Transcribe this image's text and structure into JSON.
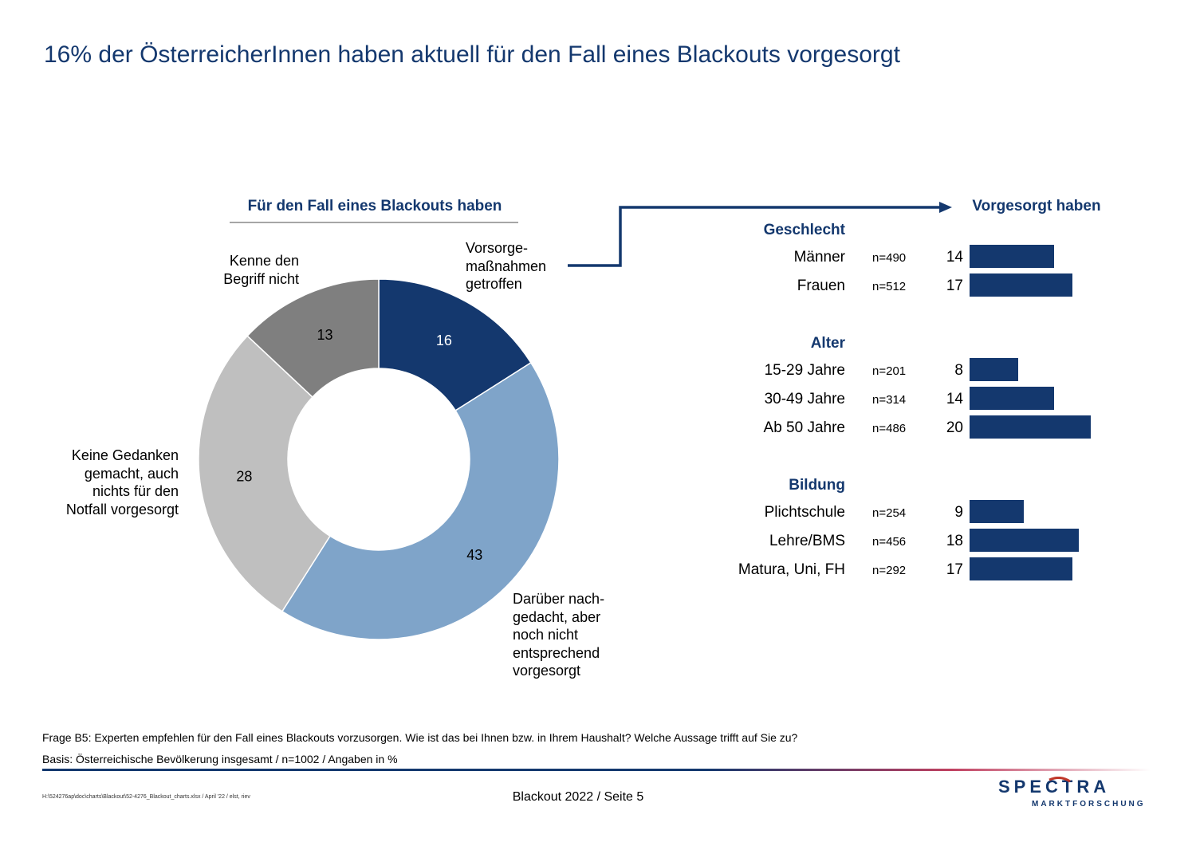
{
  "title": "16% der ÖsterreicherInnen haben aktuell für den Fall eines Blackouts vorgesorgt",
  "colors": {
    "accent": "#14386e",
    "slice_mid": "#7fa4c9",
    "slice_light": "#bfbfbf",
    "slice_gray": "#7f7f7f"
  },
  "chart_data": [
    {
      "type": "pie",
      "title": "Für den Fall eines Blackouts haben",
      "categories": [
        "Vorsorge-\nmaßnahmen\ngetroffen",
        "Darüber nach-\ngedacht, aber\nnoch nicht\nentsprechend\nvorgesorgt",
        "Keine Gedanken\ngemacht, auch\nnichts für den\nNotfall vorgesorgt",
        "Kenne den\nBegriff nicht"
      ],
      "values": [
        16,
        43,
        28,
        13
      ],
      "value_labels": [
        "16",
        "43",
        "28",
        "13"
      ],
      "colors": [
        "#14386e",
        "#7fa4c9",
        "#bfbfbf",
        "#7f7f7f"
      ]
    },
    {
      "type": "bar",
      "title": "Vorgesorgt haben",
      "groups": [
        {
          "name": "Geschlecht",
          "rows": [
            {
              "label": "Männer",
              "n": "n=490",
              "value": 14
            },
            {
              "label": "Frauen",
              "n": "n=512",
              "value": 17
            }
          ]
        },
        {
          "name": "Alter",
          "rows": [
            {
              "label": "15-29 Jahre",
              "n": "n=201",
              "value": 8
            },
            {
              "label": "30-49 Jahre",
              "n": "n=314",
              "value": 14
            },
            {
              "label": "Ab 50 Jahre",
              "n": "n=486",
              "value": 20
            }
          ]
        },
        {
          "name": "Bildung",
          "rows": [
            {
              "label": "Plichtschule",
              "n": "n=254",
              "value": 9
            },
            {
              "label": "Lehre/BMS",
              "n": "n=456",
              "value": 18
            },
            {
              "label": "Matura, Uni, FH",
              "n": "n=292",
              "value": 17
            }
          ]
        }
      ]
    }
  ],
  "footnotes": {
    "question": "Frage B5: Experten empfehlen für den Fall eines Blackouts vorzusorgen. Wie ist das bei Ihnen bzw. in Ihrem Haushalt? Welche Aussage trifft auf Sie zu?",
    "basis": "Basis: Österreichische Bevölkerung insgesamt / n=1002 / Angaben in %"
  },
  "footer": {
    "file_path": "H:\\524276ap\\doc\\charts\\Blackout\\52-4276_Blackout_charts.xlsx / April '22 / elst, riev",
    "center": "Blackout 2022  /  Seite  5",
    "logo_main": "SPECTRA",
    "logo_sub": "MARKTFORSCHUNG"
  }
}
